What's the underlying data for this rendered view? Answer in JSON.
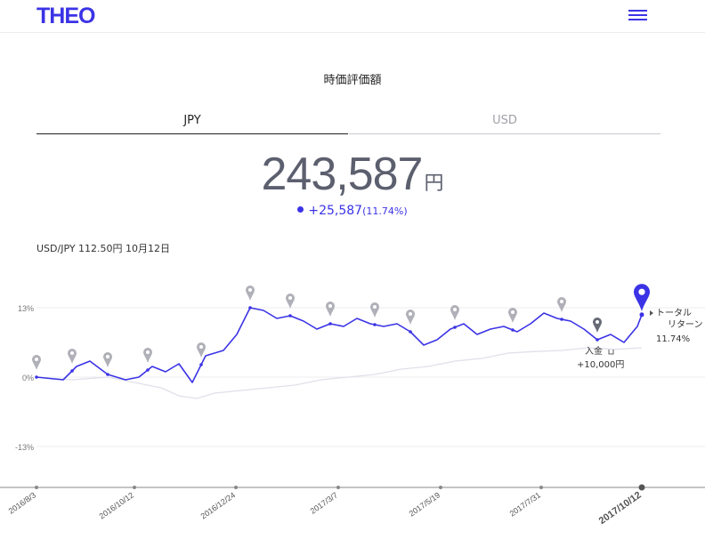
{
  "header": {
    "logo": "THEO",
    "menu_icon": "hamburger-icon"
  },
  "section_title": "時価評価額",
  "tabs": [
    {
      "label": "JPY",
      "active": true
    },
    {
      "label": "USD",
      "active": false
    }
  ],
  "amount": {
    "value": "243,587",
    "unit": "円"
  },
  "change": {
    "value": "+25,587",
    "percent": "(11.74%)"
  },
  "fx_rate": "USD/JPY 112.50円 10月12日",
  "colors": {
    "accent": "#3b33e6",
    "benchmark": "#e0e0ea",
    "marker": "#b0b0b8",
    "text": "#5c5f6e"
  },
  "chart_data": {
    "type": "line",
    "x_ticks": [
      "2016/8/3",
      "2016/10/12",
      "2016/12/24",
      "2017/3/7",
      "2017/5/19",
      "2017/7/31",
      "2017/10/12"
    ],
    "y_ticks": [
      "13%",
      "0%",
      "-13%"
    ],
    "ylim": [
      -20,
      20
    ],
    "grid": true,
    "series": [
      {
        "name": "",
        "color": "#3b33e6",
        "x": [
          0,
          30,
          45,
          60,
          80,
          100,
          115,
          130,
          145,
          160,
          175,
          190,
          210,
          225,
          240,
          255,
          270,
          285,
          300,
          315,
          330,
          345,
          360,
          375,
          390,
          405,
          420,
          435,
          450,
          465,
          480,
          495,
          510,
          525,
          540,
          555,
          570,
          585,
          600,
          615,
          630,
          645,
          660,
          675,
          680
        ],
        "values": [
          0,
          -0.5,
          2,
          3,
          0.5,
          -0.5,
          0,
          2,
          1,
          2.5,
          -1,
          4,
          5,
          8,
          13,
          12.5,
          11,
          11.5,
          10.5,
          9,
          10,
          9.5,
          11,
          10,
          9.5,
          10,
          8.5,
          6,
          7,
          9,
          10,
          8,
          9,
          9.5,
          8.5,
          10,
          12,
          11,
          10.5,
          9,
          7,
          8,
          6.5,
          9.5,
          11.7
        ]
      },
      {
        "name": "",
        "color": "#e0e0ea",
        "x": [
          0,
          40,
          80,
          110,
          140,
          160,
          180,
          200,
          230,
          260,
          290,
          320,
          350,
          380,
          410,
          440,
          470,
          500,
          530,
          560,
          590,
          620,
          650,
          680
        ],
        "values": [
          0,
          -0.5,
          0,
          -1,
          -2,
          -3.5,
          -4,
          -3,
          -2.5,
          -2,
          -1.5,
          -0.5,
          0,
          0.5,
          1.5,
          2,
          3,
          3.5,
          4.5,
          4.8,
          5,
          5.5,
          5.2,
          5.5
        ]
      }
    ],
    "markers": [
      0,
      40,
      80,
      125,
      185,
      240,
      285,
      330,
      380,
      420,
      470,
      535,
      590,
      630
    ],
    "annotations": [
      {
        "label": "入金",
        "icon": "deposit-icon",
        "value": "+10,000円"
      },
      {
        "label": "トータル\nリターン",
        "value": "11.74%"
      }
    ]
  }
}
